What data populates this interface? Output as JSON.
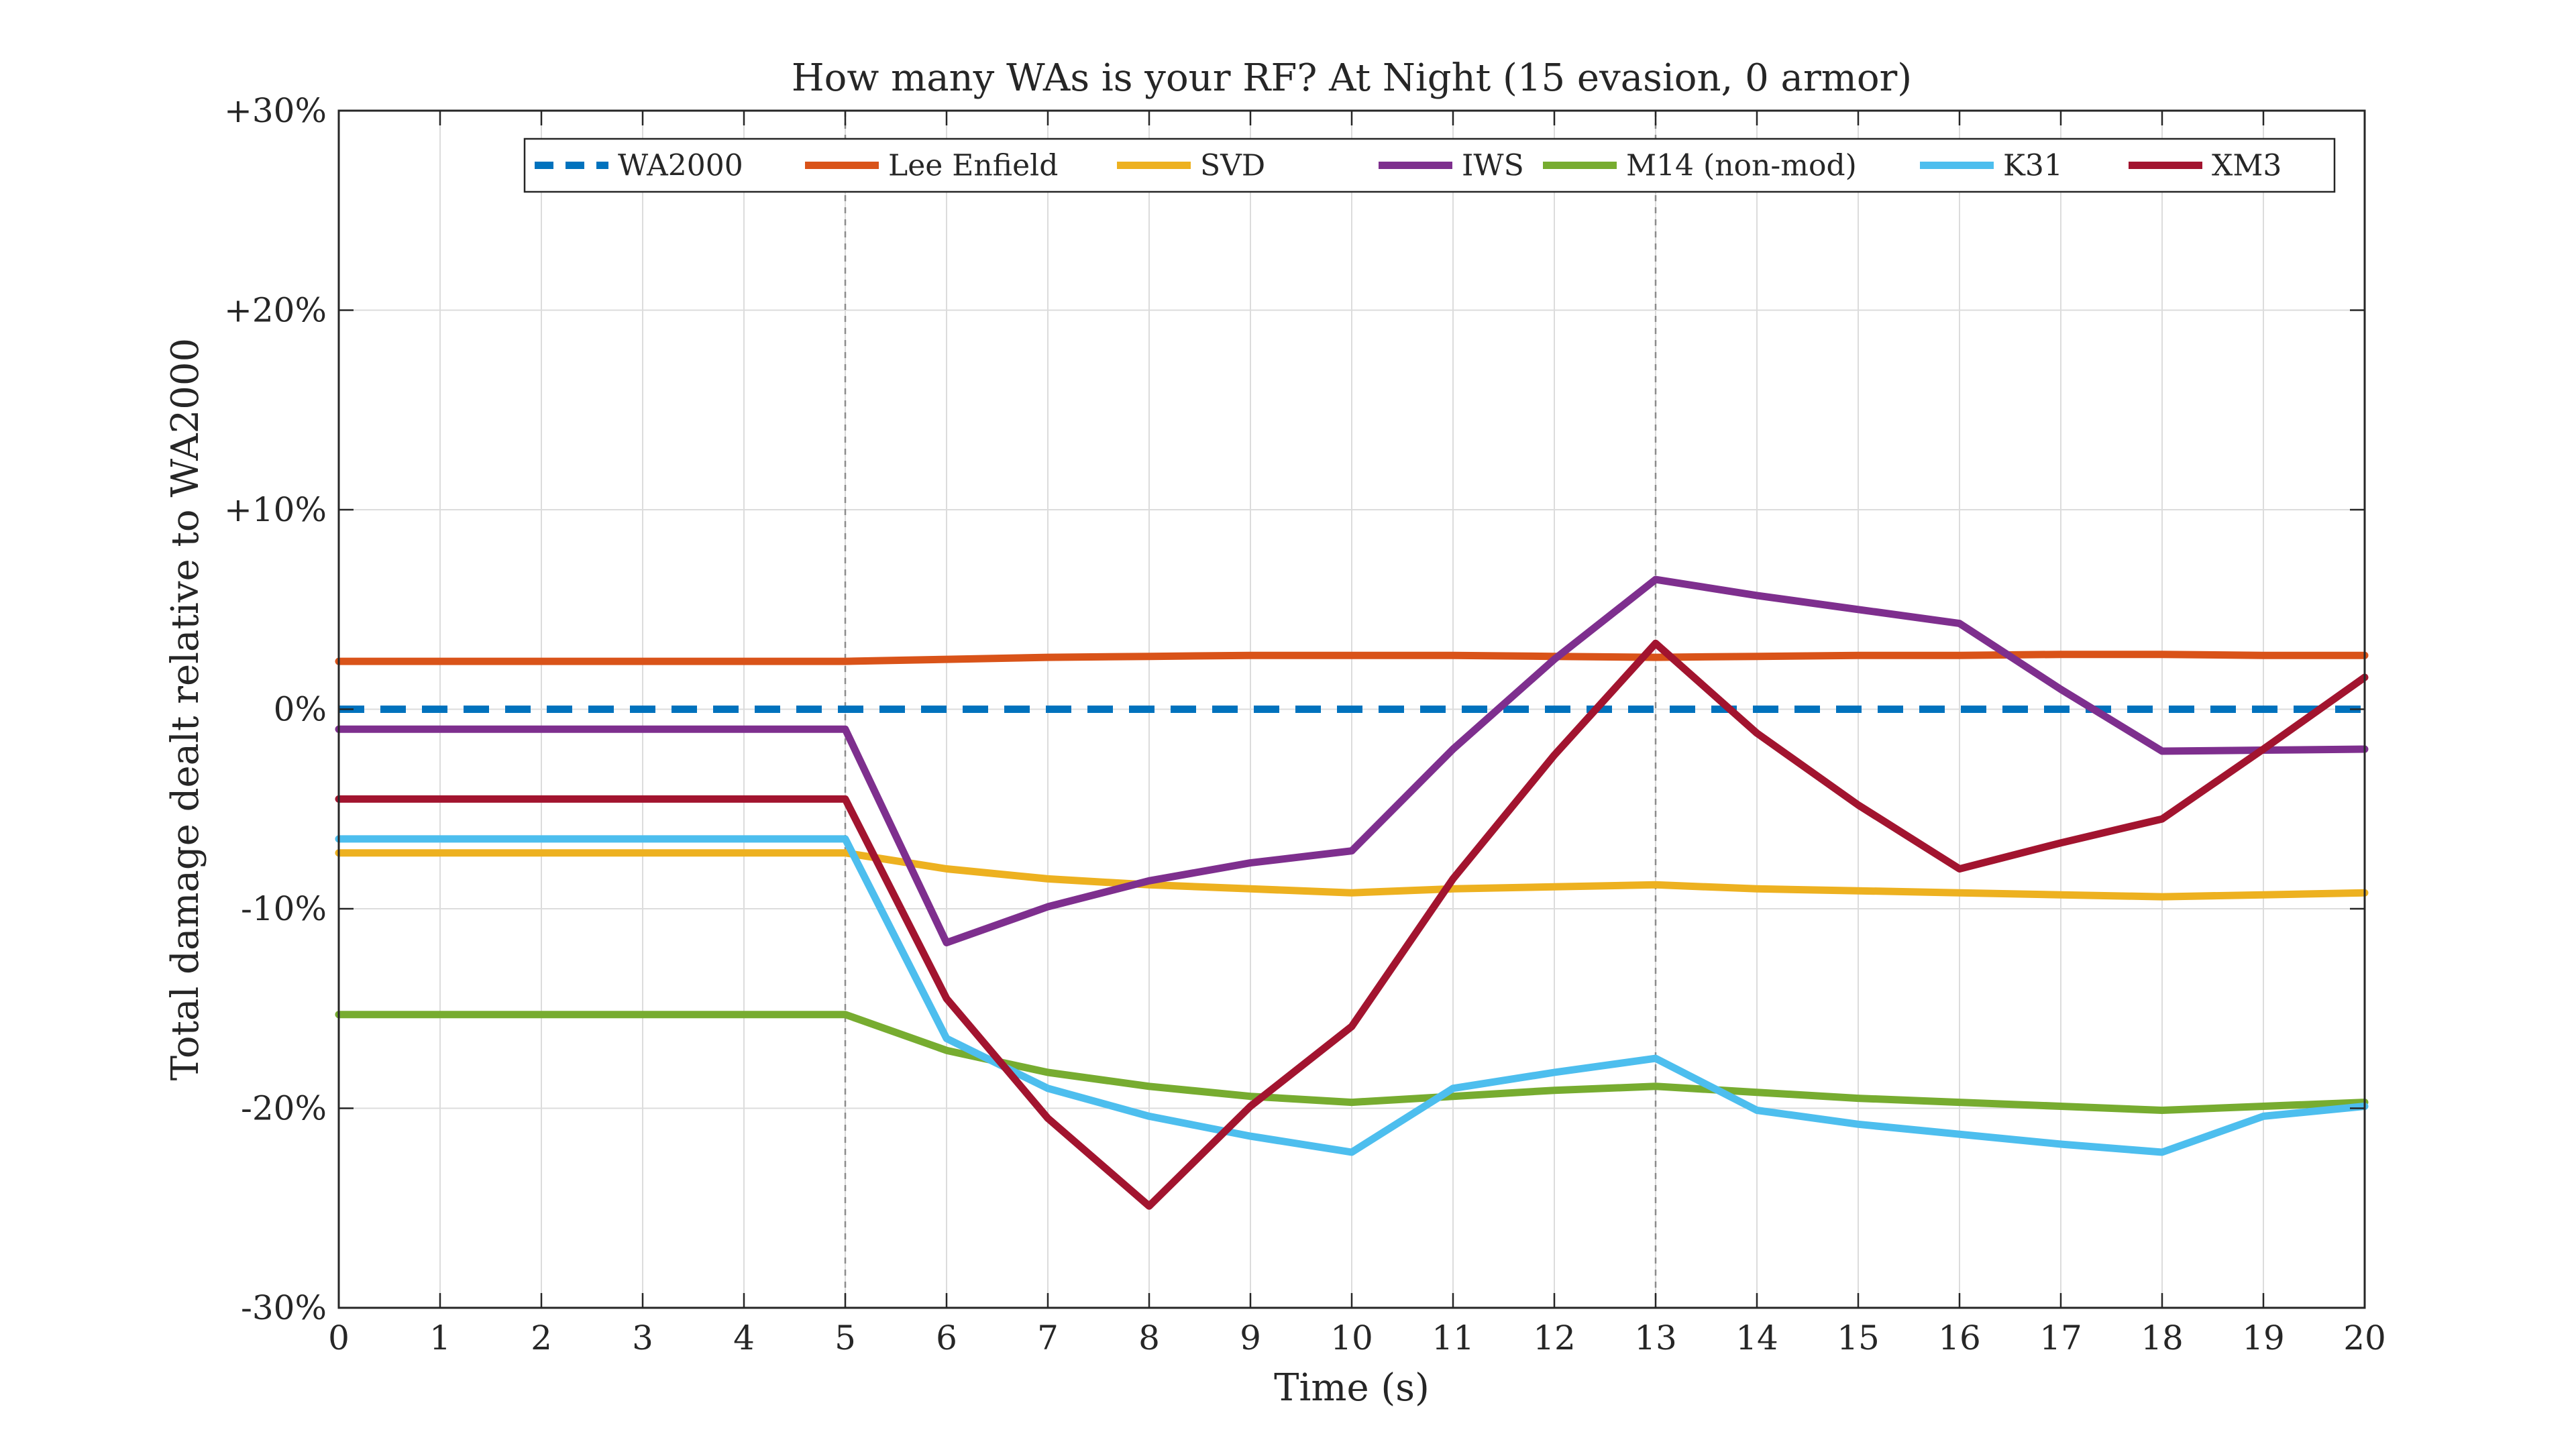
{
  "chart_data": {
    "type": "line",
    "title": "How many WAs is your RF? At Night (15 evasion, 0 armor)",
    "xlabel": "Time (s)",
    "ylabel": "Total damage dealt relative to WA2000",
    "xlim": [
      0,
      20
    ],
    "ylim": [
      -30,
      30
    ],
    "x_ticks": [
      0,
      1,
      2,
      3,
      4,
      5,
      6,
      7,
      8,
      9,
      10,
      11,
      12,
      13,
      14,
      15,
      16,
      17,
      18,
      19,
      20
    ],
    "x_tick_labels": [
      "0",
      "1",
      "2",
      "3",
      "4",
      "5",
      "6",
      "7",
      "8",
      "9",
      "10",
      "11",
      "12",
      "13",
      "14",
      "15",
      "16",
      "17",
      "18",
      "19",
      "20"
    ],
    "y_ticks": [
      -30,
      -20,
      -10,
      0,
      10,
      20,
      30
    ],
    "y_tick_labels": [
      "-30%",
      "-20%",
      "-10%",
      "0%",
      "+10%",
      "+20%",
      "+30%"
    ],
    "grid": true,
    "vertical_markers": [
      5,
      13
    ],
    "legend_position": "top-right",
    "series": [
      {
        "name": "WA2000",
        "color": "#0072BD",
        "dashed": true,
        "x": [
          0,
          20
        ],
        "y": [
          0,
          0
        ]
      },
      {
        "name": "Lee Enfield",
        "color": "#D95319",
        "dashed": false,
        "x": [
          0,
          5,
          6,
          7,
          8,
          9,
          10,
          11,
          12,
          13,
          14,
          15,
          16,
          17,
          18,
          19,
          20
        ],
        "y": [
          2.4,
          2.4,
          2.5,
          2.6,
          2.65,
          2.7,
          2.7,
          2.7,
          2.65,
          2.6,
          2.65,
          2.7,
          2.7,
          2.75,
          2.75,
          2.7,
          2.7
        ]
      },
      {
        "name": "SVD",
        "color": "#EDB120",
        "dashed": false,
        "x": [
          0,
          5,
          6,
          7,
          8,
          9,
          10,
          11,
          12,
          13,
          14,
          15,
          16,
          17,
          18,
          19,
          20
        ],
        "y": [
          -7.2,
          -7.2,
          -8.0,
          -8.5,
          -8.8,
          -9.0,
          -9.2,
          -9.0,
          -8.9,
          -8.8,
          -9.0,
          -9.1,
          -9.2,
          -9.3,
          -9.4,
          -9.3,
          -9.2
        ]
      },
      {
        "name": "IWS",
        "color": "#7E2F8E",
        "dashed": false,
        "x": [
          0,
          5,
          6,
          7,
          8,
          9,
          10,
          11,
          12,
          13,
          14,
          15,
          16,
          17,
          18,
          19,
          20
        ],
        "y": [
          -1.0,
          -1.0,
          -11.7,
          -9.9,
          -8.6,
          -7.7,
          -7.1,
          -2.0,
          2.5,
          6.5,
          5.7,
          5.0,
          4.3,
          1.0,
          -2.1,
          -2.05,
          -2.0
        ]
      },
      {
        "name": "M14 (non-mod)",
        "color": "#77AC30",
        "dashed": false,
        "x": [
          0,
          5,
          6,
          7,
          8,
          9,
          10,
          11,
          12,
          13,
          14,
          15,
          16,
          17,
          18,
          19,
          20
        ],
        "y": [
          -15.3,
          -15.3,
          -17.1,
          -18.2,
          -18.9,
          -19.4,
          -19.7,
          -19.4,
          -19.1,
          -18.9,
          -19.2,
          -19.5,
          -19.7,
          -19.9,
          -20.1,
          -19.9,
          -19.7
        ]
      },
      {
        "name": "K31",
        "color": "#4DBEEE",
        "dashed": false,
        "x": [
          0,
          5,
          6,
          7,
          8,
          9,
          10,
          11,
          12,
          13,
          14,
          15,
          16,
          17,
          18,
          19,
          20
        ],
        "y": [
          -6.5,
          -6.5,
          -16.5,
          -19.0,
          -20.4,
          -21.4,
          -22.2,
          -19.0,
          -18.2,
          -17.5,
          -20.1,
          -20.8,
          -21.3,
          -21.8,
          -22.2,
          -20.4,
          -19.9
        ]
      },
      {
        "name": "XM3",
        "color": "#A2142F",
        "dashed": false,
        "x": [
          0,
          5,
          6,
          7,
          8,
          9,
          10,
          11,
          12,
          13,
          14,
          15,
          16,
          17,
          18,
          19,
          20
        ],
        "y": [
          -4.5,
          -4.5,
          -14.5,
          -20.5,
          -24.9,
          -19.9,
          -15.9,
          -8.5,
          -2.3,
          3.3,
          -1.2,
          -4.8,
          -8.0,
          -6.7,
          -5.5,
          -2.0,
          1.6
        ]
      }
    ]
  }
}
